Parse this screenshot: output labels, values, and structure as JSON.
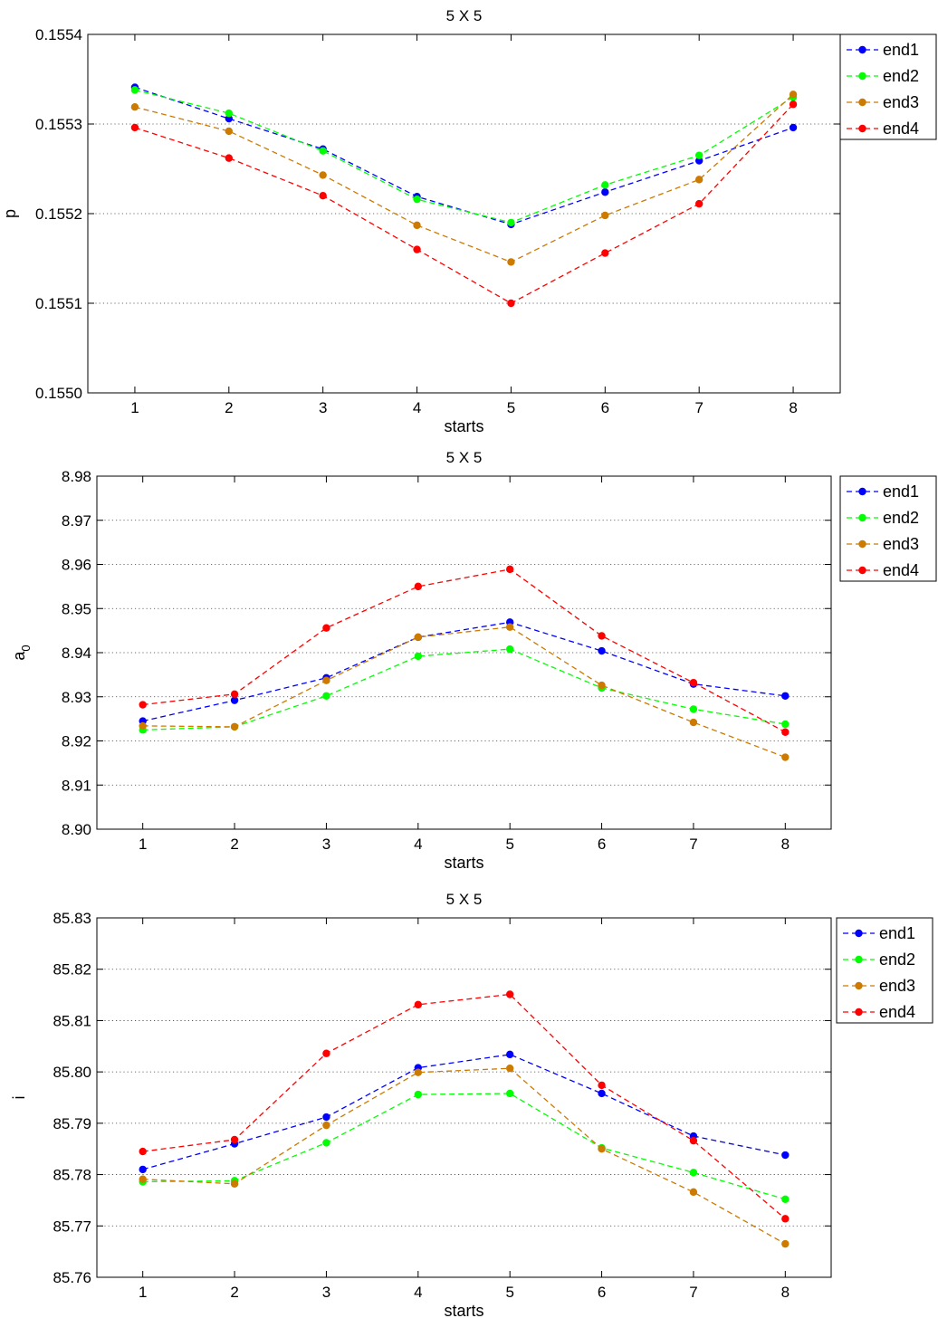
{
  "chart_data": [
    {
      "type": "line",
      "title": "5 X 5",
      "xlabel": "starts",
      "ylabel": "p",
      "ylabel_sub": "",
      "x": [
        1,
        2,
        3,
        4,
        5,
        6,
        7,
        8
      ],
      "xticks": [
        "1",
        "2",
        "3",
        "4",
        "5",
        "6",
        "7",
        "8"
      ],
      "xlim": [
        0.5,
        8.5
      ],
      "ylim": [
        0.155,
        0.1554
      ],
      "yticks": [
        0.155,
        0.1551,
        0.1552,
        0.1553,
        0.1554
      ],
      "ytick_labels": [
        "0.1550",
        "0.1551",
        "0.1552",
        "0.1553",
        "0.1554"
      ],
      "grid": "y-dotted",
      "legend_position": "outside-top-right",
      "series": [
        {
          "name": "end1",
          "color": "#0000ff",
          "values": [
            0.155341,
            0.155306,
            0.155272,
            0.155219,
            0.155188,
            0.155224,
            0.155259,
            0.155296
          ]
        },
        {
          "name": "end2",
          "color": "#00ff00",
          "values": [
            0.155338,
            0.155312,
            0.15527,
            0.155216,
            0.15519,
            0.155232,
            0.155265,
            0.15533
          ]
        },
        {
          "name": "end3",
          "color": "#cc7a00",
          "values": [
            0.155319,
            0.155292,
            0.155243,
            0.155187,
            0.155146,
            0.155198,
            0.155238,
            0.155333
          ]
        },
        {
          "name": "end4",
          "color": "#ff0000",
          "values": [
            0.155296,
            0.155262,
            0.15522,
            0.15516,
            0.1551,
            0.155156,
            0.155211,
            0.155322
          ]
        }
      ]
    },
    {
      "type": "line",
      "title": "5 X 5",
      "xlabel": "starts",
      "ylabel": "a",
      "ylabel_sub": "0",
      "x": [
        1,
        2,
        3,
        4,
        5,
        6,
        7,
        8
      ],
      "xticks": [
        "1",
        "2",
        "3",
        "4",
        "5",
        "6",
        "7",
        "8"
      ],
      "xlim": [
        0.5,
        8.5
      ],
      "ylim": [
        8.9,
        8.98
      ],
      "yticks": [
        8.9,
        8.91,
        8.92,
        8.93,
        8.94,
        8.95,
        8.96,
        8.97,
        8.98
      ],
      "ytick_labels": [
        "8.90",
        "8.91",
        "8.92",
        "8.93",
        "8.94",
        "8.95",
        "8.96",
        "8.97",
        "8.98"
      ],
      "grid": "y-dotted",
      "legend_position": "outside-top-right",
      "series": [
        {
          "name": "end1",
          "color": "#0000ff",
          "values": [
            8.9245,
            8.9292,
            8.9343,
            8.9435,
            8.9469,
            8.9404,
            8.9329,
            8.9302
          ]
        },
        {
          "name": "end2",
          "color": "#00ff00",
          "values": [
            8.9225,
            8.9232,
            8.9302,
            8.9392,
            8.9408,
            8.932,
            8.9272,
            8.9238
          ]
        },
        {
          "name": "end3",
          "color": "#cc7a00",
          "values": [
            8.9234,
            8.9232,
            8.9337,
            8.9435,
            8.9458,
            8.9326,
            8.9242,
            8.9163
          ]
        },
        {
          "name": "end4",
          "color": "#ff0000",
          "values": [
            8.9282,
            8.9306,
            8.9456,
            8.955,
            8.9589,
            8.9438,
            8.9332,
            8.922
          ]
        }
      ]
    },
    {
      "type": "line",
      "title": "5 X 5",
      "xlabel": "starts",
      "ylabel": "i",
      "ylabel_sub": "",
      "x": [
        1,
        2,
        3,
        4,
        5,
        6,
        7,
        8
      ],
      "xticks": [
        "1",
        "2",
        "3",
        "4",
        "5",
        "6",
        "7",
        "8"
      ],
      "xlim": [
        0.5,
        8.5
      ],
      "ylim": [
        85.76,
        85.83
      ],
      "yticks": [
        85.76,
        85.77,
        85.78,
        85.79,
        85.8,
        85.81,
        85.82,
        85.83
      ],
      "ytick_labels": [
        "85.76",
        "85.77",
        "85.78",
        "85.79",
        "85.80",
        "85.81",
        "85.82",
        "85.83"
      ],
      "grid": "y-dotted",
      "legend_position": "outside-top-right",
      "series": [
        {
          "name": "end1",
          "color": "#0000ff",
          "values": [
            85.781,
            85.786,
            85.7912,
            85.8008,
            85.8034,
            85.7958,
            85.7875,
            85.7838
          ]
        },
        {
          "name": "end2",
          "color": "#00ff00",
          "values": [
            85.7786,
            85.7788,
            85.7862,
            85.7956,
            85.7958,
            85.7852,
            85.7804,
            85.7752
          ]
        },
        {
          "name": "end3",
          "color": "#cc7a00",
          "values": [
            85.7791,
            85.7782,
            85.7896,
            85.7999,
            85.8007,
            85.785,
            85.7766,
            85.7665
          ]
        },
        {
          "name": "end4",
          "color": "#ff0000",
          "values": [
            85.7845,
            85.7868,
            85.8036,
            85.8131,
            85.8151,
            85.7974,
            85.7866,
            85.7714
          ]
        }
      ]
    }
  ]
}
